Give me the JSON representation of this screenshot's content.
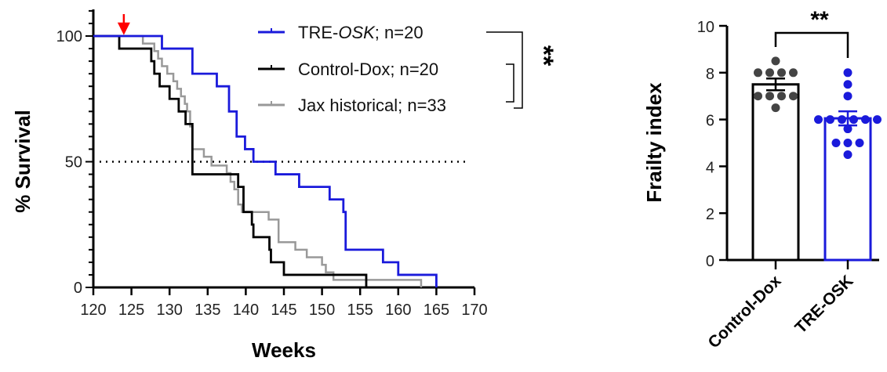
{
  "chart_data": [
    {
      "type": "line",
      "subtype": "kaplan-meier-step",
      "xlabel": "Weeks",
      "ylabel": "% Survival",
      "xlim": [
        120,
        170
      ],
      "ylim": [
        0,
        100
      ],
      "xticks": [
        "120",
        "125",
        "130",
        "135",
        "140",
        "145",
        "150",
        "155",
        "160",
        "165",
        "170"
      ],
      "yticks": [
        "0",
        "50",
        "100"
      ],
      "reference_line": {
        "y": 50,
        "style": "dotted"
      },
      "marker_arrow": {
        "x": 124,
        "color": "#ff0000"
      },
      "legend_position": "top-right",
      "significance": "**",
      "series": [
        {
          "name_prefix": "TRE-",
          "name_italic": "OSK",
          "name_suffix": "; n=20",
          "color": "#1a1adb",
          "steps": [
            [
              120,
              100
            ],
            [
              129,
              95
            ],
            [
              133,
              85
            ],
            [
              136.2,
              80
            ],
            [
              137.8,
              70
            ],
            [
              138.8,
              60
            ],
            [
              139.9,
              55
            ],
            [
              141,
              50
            ],
            [
              143.9,
              45
            ],
            [
              147,
              40
            ],
            [
              151,
              35
            ],
            [
              152.8,
              30
            ],
            [
              153.1,
              15
            ],
            [
              158,
              10
            ],
            [
              160,
              5
            ],
            [
              165,
              0
            ]
          ]
        },
        {
          "name": "Control-Dox; n=20",
          "color": "#000000",
          "steps": [
            [
              120,
              100
            ],
            [
              123.4,
              95
            ],
            [
              127.6,
              90
            ],
            [
              128,
              85
            ],
            [
              128.7,
              80
            ],
            [
              130,
              75
            ],
            [
              131.2,
              70
            ],
            [
              132.1,
              65
            ],
            [
              133,
              45
            ],
            [
              139,
              40
            ],
            [
              139.7,
              30
            ],
            [
              140.8,
              25
            ],
            [
              141,
              20
            ],
            [
              143.1,
              15
            ],
            [
              143.3,
              10
            ],
            [
              145,
              5
            ],
            [
              155.8,
              0
            ]
          ]
        },
        {
          "name": "Jax historical; n=33",
          "color": "#999999",
          "steps": [
            [
              120,
              100
            ],
            [
              126.5,
              97
            ],
            [
              128,
              94
            ],
            [
              128.5,
              91
            ],
            [
              129,
              88
            ],
            [
              129.7,
              85
            ],
            [
              130.5,
              82
            ],
            [
              131,
              79
            ],
            [
              131.5,
              76
            ],
            [
              132,
              73
            ],
            [
              132.3,
              70
            ],
            [
              132.7,
              64
            ],
            [
              133,
              55
            ],
            [
              134.5,
              52
            ],
            [
              135.5,
              48.5
            ],
            [
              137.5,
              45.5
            ],
            [
              138,
              42
            ],
            [
              138.5,
              39
            ],
            [
              139,
              33
            ],
            [
              139.5,
              30
            ],
            [
              143,
              27
            ],
            [
              144.3,
              18
            ],
            [
              146.5,
              15
            ],
            [
              148,
              12
            ],
            [
              150,
              9
            ],
            [
              150.5,
              6
            ],
            [
              151.5,
              3
            ],
            [
              163,
              0
            ]
          ]
        }
      ]
    },
    {
      "type": "bar",
      "ylabel": "Frailty index",
      "ylim": [
        0,
        10
      ],
      "yticks": [
        "0",
        "2",
        "4",
        "6",
        "8",
        "10"
      ],
      "categories": [
        "Control-Dox",
        "TRE-OSK"
      ],
      "values": [
        7.5,
        6.05
      ],
      "sem": [
        0.25,
        0.3
      ],
      "colors": [
        "#000000",
        "#1a1adb"
      ],
      "dot_colors": [
        "#444444",
        "#1a1adb"
      ],
      "points": [
        [
          8.5,
          8,
          8,
          8,
          8,
          7,
          7,
          7,
          7,
          6.5
        ],
        [
          8,
          7.5,
          7,
          6,
          6,
          6,
          6,
          6,
          6,
          5.6,
          5,
          5,
          5,
          4.5
        ]
      ],
      "significance": "**"
    }
  ]
}
